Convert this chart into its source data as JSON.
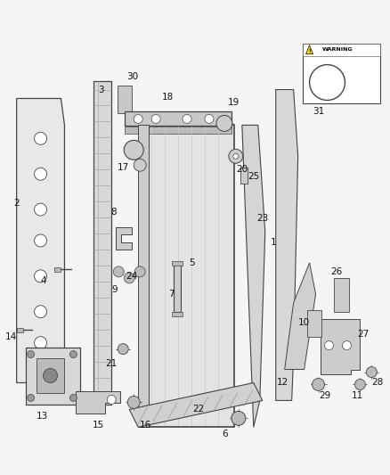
{
  "bg": "#f5f5f5",
  "lc": "#444444",
  "fc_light": "#e0e0e0",
  "fc_mid": "#cccccc",
  "fc_dark": "#b0b0b0",
  "white": "#ffffff",
  "figsize": [
    4.38,
    5.33
  ],
  "dpi": 100
}
